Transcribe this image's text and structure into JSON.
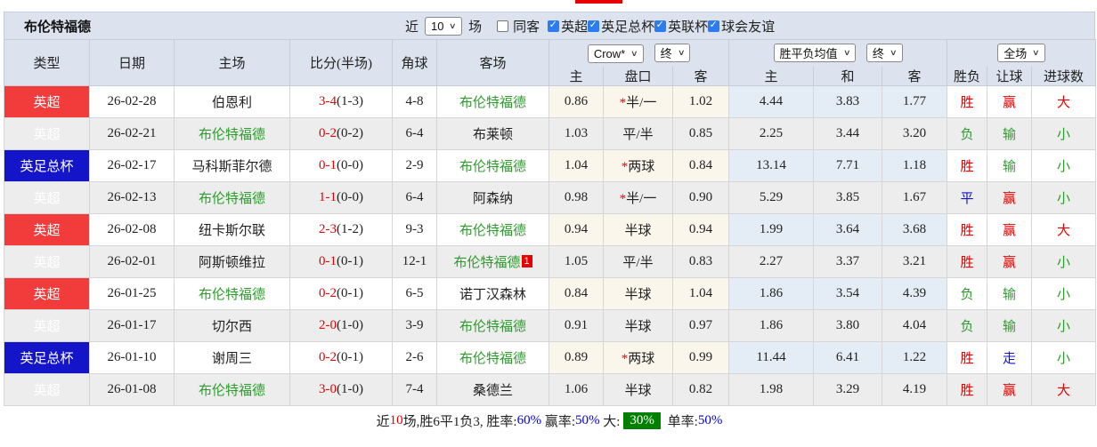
{
  "header": {
    "title": "布伦特福德"
  },
  "controls": {
    "recent_label": "近",
    "recent_value": "10",
    "matches_label": "场",
    "same_away_label": "同客",
    "same_away_checked": false,
    "leagues": [
      {
        "label": "英超",
        "checked": true
      },
      {
        "label": "英足总杯",
        "checked": true
      },
      {
        "label": "英联杯",
        "checked": true
      },
      {
        "label": "球会友谊",
        "checked": true
      }
    ]
  },
  "table": {
    "left_headers": [
      "类型",
      "日期",
      "主场",
      "比分(半场)",
      "角球",
      "客场"
    ],
    "sub_headers": [
      "主",
      "盘口",
      "客",
      "主",
      "和",
      "客",
      "胜负",
      "让球",
      "进球数"
    ],
    "selects": {
      "bookmaker": "Crow*",
      "bookmaker_time": "终",
      "avg_label": "胜平负均值",
      "avg_time": "终",
      "scope": "全场"
    },
    "rows": [
      {
        "league": "英超",
        "league_color": "red",
        "date": "26-02-28",
        "home": "伯恩利",
        "home_self": false,
        "score": "3-4",
        "half": "(1-3)",
        "corners": "4-8",
        "away": "布伦特福德",
        "away_self": true,
        "away_badge": "",
        "odds": [
          "0.86",
          "*半/一",
          "1.02"
        ],
        "avg": [
          "4.44",
          "3.83",
          "1.77"
        ],
        "result": {
          "text": "胜",
          "color": "red"
        },
        "handicap_result": {
          "text": "赢",
          "color": "red"
        },
        "goals": {
          "text": "大",
          "color": "red"
        }
      },
      {
        "league": "英超",
        "league_color": "red",
        "date": "26-02-21",
        "home": "布伦特福德",
        "home_self": true,
        "score": "0-2",
        "half": "(0-2)",
        "corners": "6-4",
        "away": "布莱顿",
        "away_self": false,
        "away_badge": "",
        "odds": [
          "1.03",
          "平/半",
          "0.85"
        ],
        "avg": [
          "2.25",
          "3.44",
          "3.20"
        ],
        "result": {
          "text": "负",
          "color": "green"
        },
        "handicap_result": {
          "text": "输",
          "color": "green"
        },
        "goals": {
          "text": "小",
          "color": "green"
        }
      },
      {
        "league": "英足总杯",
        "league_color": "blue",
        "date": "26-02-17",
        "home": "马科斯菲尔德",
        "home_self": false,
        "score": "0-1",
        "half": "(0-0)",
        "corners": "2-9",
        "away": "布伦特福德",
        "away_self": true,
        "away_badge": "",
        "odds": [
          "1.04",
          "*两球",
          "0.84"
        ],
        "avg": [
          "13.14",
          "7.71",
          "1.18"
        ],
        "result": {
          "text": "胜",
          "color": "red"
        },
        "handicap_result": {
          "text": "输",
          "color": "green"
        },
        "goals": {
          "text": "小",
          "color": "green"
        }
      },
      {
        "league": "英超",
        "league_color": "red",
        "date": "26-02-13",
        "home": "布伦特福德",
        "home_self": true,
        "score": "1-1",
        "half": "(0-0)",
        "corners": "6-4",
        "away": "阿森纳",
        "away_self": false,
        "away_badge": "",
        "odds": [
          "0.98",
          "*半/一",
          "0.90"
        ],
        "avg": [
          "5.29",
          "3.85",
          "1.67"
        ],
        "result": {
          "text": "平",
          "color": "blue"
        },
        "handicap_result": {
          "text": "赢",
          "color": "red"
        },
        "goals": {
          "text": "小",
          "color": "green"
        }
      },
      {
        "league": "英超",
        "league_color": "red",
        "date": "26-02-08",
        "home": "纽卡斯尔联",
        "home_self": false,
        "score": "2-3",
        "half": "(1-2)",
        "corners": "9-3",
        "away": "布伦特福德",
        "away_self": true,
        "away_badge": "",
        "odds": [
          "0.94",
          "半球",
          "0.94"
        ],
        "avg": [
          "1.99",
          "3.64",
          "3.68"
        ],
        "result": {
          "text": "胜",
          "color": "red"
        },
        "handicap_result": {
          "text": "赢",
          "color": "red"
        },
        "goals": {
          "text": "大",
          "color": "red"
        }
      },
      {
        "league": "英超",
        "league_color": "red",
        "date": "26-02-01",
        "home": "阿斯顿维拉",
        "home_self": false,
        "score": "0-1",
        "half": "(0-1)",
        "corners": "12-1",
        "away": "布伦特福德",
        "away_self": true,
        "away_badge": "1",
        "odds": [
          "1.05",
          "平/半",
          "0.83"
        ],
        "avg": [
          "2.27",
          "3.37",
          "3.21"
        ],
        "result": {
          "text": "胜",
          "color": "red"
        },
        "handicap_result": {
          "text": "赢",
          "color": "red"
        },
        "goals": {
          "text": "小",
          "color": "green"
        }
      },
      {
        "league": "英超",
        "league_color": "red",
        "date": "26-01-25",
        "home": "布伦特福德",
        "home_self": true,
        "score": "0-2",
        "half": "(0-1)",
        "corners": "6-5",
        "away": "诺丁汉森林",
        "away_self": false,
        "away_badge": "",
        "odds": [
          "0.84",
          "半球",
          "1.04"
        ],
        "avg": [
          "1.86",
          "3.54",
          "4.39"
        ],
        "result": {
          "text": "负",
          "color": "green"
        },
        "handicap_result": {
          "text": "输",
          "color": "green"
        },
        "goals": {
          "text": "小",
          "color": "green"
        }
      },
      {
        "league": "英超",
        "league_color": "red",
        "date": "26-01-17",
        "home": "切尔西",
        "home_self": false,
        "score": "2-0",
        "half": "(1-0)",
        "corners": "3-9",
        "away": "布伦特福德",
        "away_self": true,
        "away_badge": "",
        "odds": [
          "0.91",
          "半球",
          "0.97"
        ],
        "avg": [
          "1.86",
          "3.80",
          "4.04"
        ],
        "result": {
          "text": "负",
          "color": "green"
        },
        "handicap_result": {
          "text": "输",
          "color": "green"
        },
        "goals": {
          "text": "小",
          "color": "green"
        }
      },
      {
        "league": "英足总杯",
        "league_color": "blue",
        "date": "26-01-10",
        "home": "谢周三",
        "home_self": false,
        "score": "0-2",
        "half": "(0-1)",
        "corners": "2-6",
        "away": "布伦特福德",
        "away_self": true,
        "away_badge": "",
        "odds": [
          "0.89",
          "*两球",
          "0.99"
        ],
        "avg": [
          "11.44",
          "6.41",
          "1.22"
        ],
        "result": {
          "text": "胜",
          "color": "red"
        },
        "handicap_result": {
          "text": "走",
          "color": "blue"
        },
        "goals": {
          "text": "小",
          "color": "green"
        }
      },
      {
        "league": "英超",
        "league_color": "red",
        "date": "26-01-08",
        "home": "布伦特福德",
        "home_self": true,
        "score": "3-0",
        "half": "(1-0)",
        "corners": "7-4",
        "away": "桑德兰",
        "away_self": false,
        "away_badge": "",
        "odds": [
          "1.06",
          "半球",
          "0.82"
        ],
        "avg": [
          "1.98",
          "3.29",
          "4.19"
        ],
        "result": {
          "text": "胜",
          "color": "red"
        },
        "handicap_result": {
          "text": "赢",
          "color": "red"
        },
        "goals": {
          "text": "大",
          "color": "red"
        }
      }
    ]
  },
  "footer": {
    "segments": [
      {
        "text": "近",
        "style": "plain"
      },
      {
        "text": "10",
        "style": "red"
      },
      {
        "text": "场,胜6平1负3, 胜率:",
        "style": "plain"
      },
      {
        "text": "60%",
        "style": "blue"
      },
      {
        "text": " 赢率:",
        "style": "plain"
      },
      {
        "text": "50%",
        "style": "blue"
      },
      {
        "text": " 大:",
        "style": "plain"
      },
      {
        "text": "30%",
        "style": "greenbox"
      },
      {
        "text": " 单率:",
        "style": "plain"
      },
      {
        "text": "50%",
        "style": "blue"
      }
    ]
  },
  "colors": {
    "league_red": "#f23c3c",
    "league_blue": "#1414c8",
    "win_red": "#e60000",
    "lose_green": "#2c9c2c",
    "draw_blue": "#1414cc",
    "header_bg": "#dce3ee",
    "odds_bg": "#faf6ec",
    "avg_bg": "#e4edf5",
    "checkbox_blue": "#2b7cf0",
    "footer_green": "#008000"
  }
}
